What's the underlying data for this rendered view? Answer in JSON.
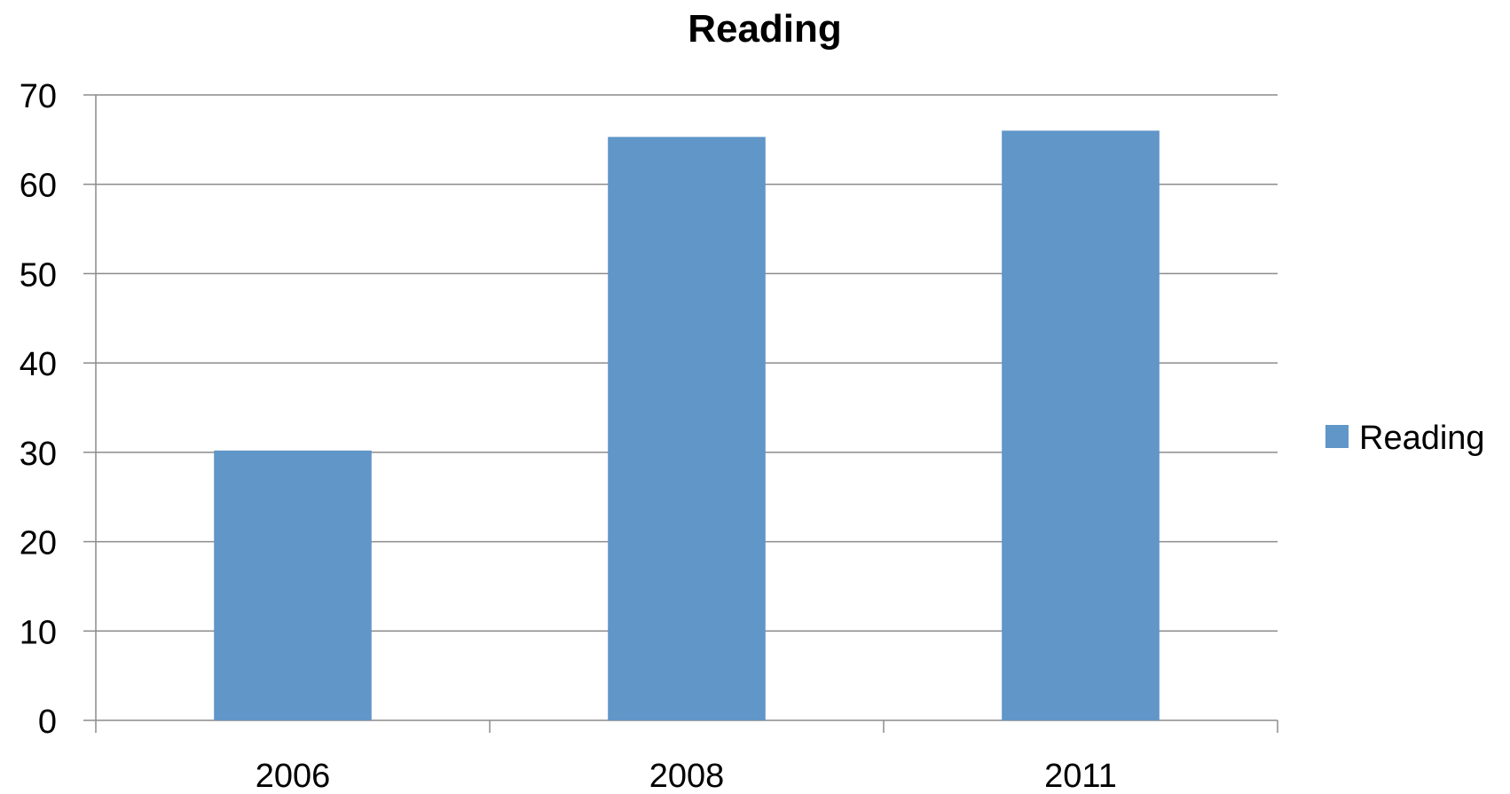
{
  "chart_data": {
    "type": "bar",
    "title": "Reading",
    "categories": [
      "2006",
      "2008",
      "2011"
    ],
    "series": [
      {
        "name": "Reading",
        "values": [
          30.2,
          65.3,
          66.0
        ],
        "color": "#6096C8"
      }
    ],
    "ylim": [
      0,
      70
    ],
    "yticks": [
      0,
      10,
      20,
      30,
      40,
      50,
      60,
      70
    ],
    "xlabel": "",
    "ylabel": "",
    "grid": true,
    "legend": "right"
  }
}
